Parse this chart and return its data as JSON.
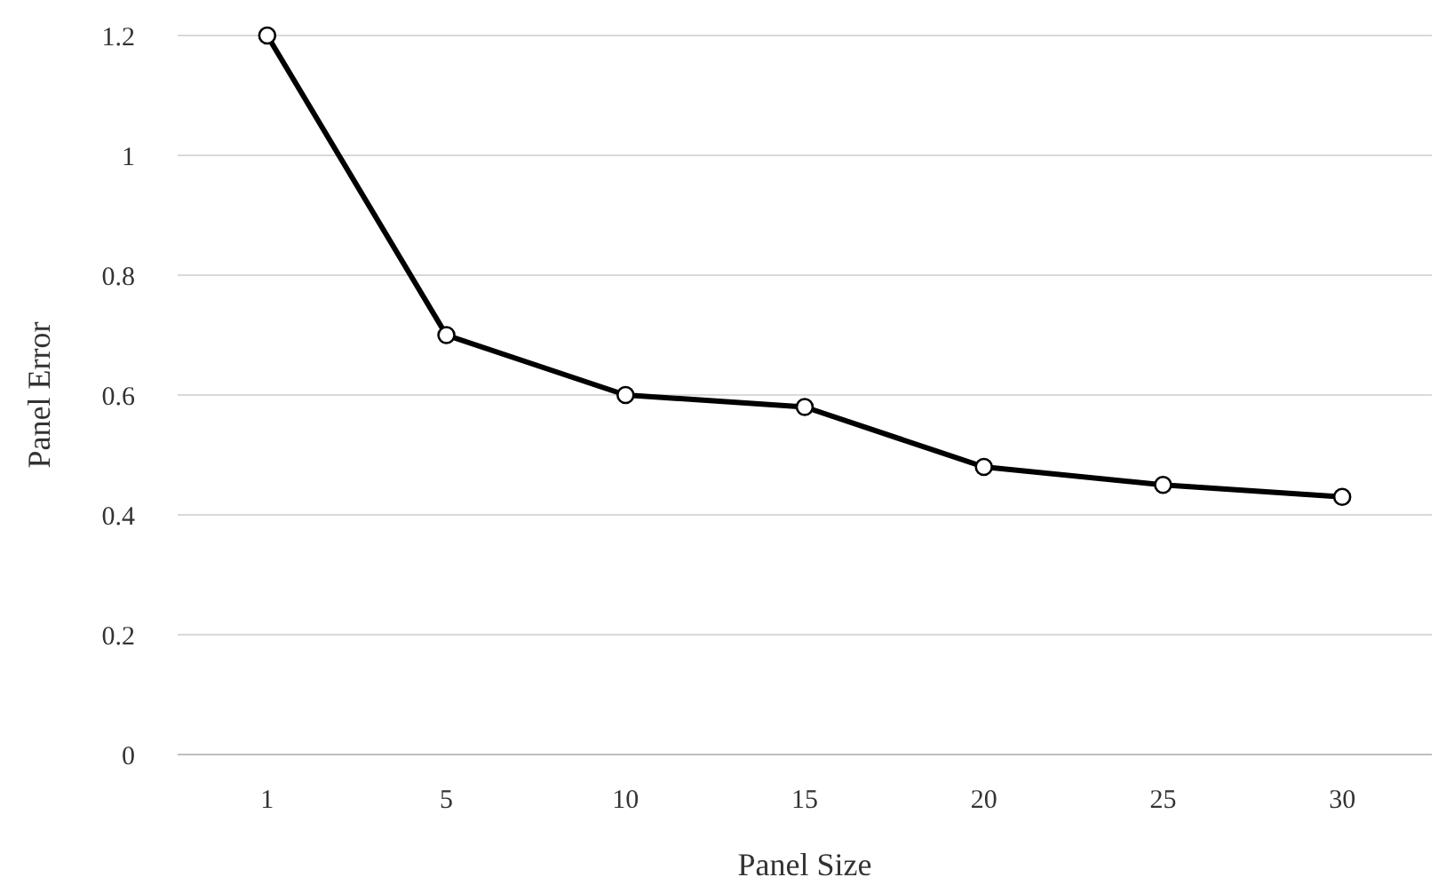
{
  "chart_data": {
    "type": "line",
    "xlabel": "Panel Size",
    "ylabel": "Panel Error",
    "categories": [
      "1",
      "5",
      "10",
      "15",
      "20",
      "25",
      "30"
    ],
    "series": [
      {
        "color": "#000000",
        "values": [
          1.2,
          0.7,
          0.6,
          0.58,
          0.48,
          0.45,
          0.43
        ]
      }
    ],
    "ylim": [
      0,
      1.2
    ],
    "yticks": [
      0,
      0.2,
      0.4,
      0.6,
      0.8,
      1,
      1.2
    ],
    "grid": "y",
    "marker": "circle",
    "line_style": "solid"
  }
}
